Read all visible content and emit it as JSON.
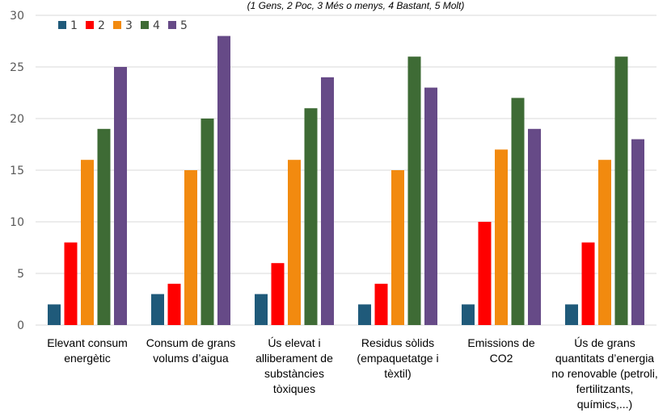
{
  "chart_data": {
    "type": "bar",
    "subtitle": "(1 Gens, 2 Poc, 3 Més o menys, 4 Bastant, 5 Molt)",
    "categories": [
      [
        "Elevant consum",
        "energètic"
      ],
      [
        "Consum de grans",
        "volums d’aigua"
      ],
      [
        "Ús elevat i",
        "alliberament de",
        "substàncies",
        "tòxiques"
      ],
      [
        "Residus sòlids",
        "(empaquetatge i",
        "tèxtil)"
      ],
      [
        "Emissions de",
        "CO2"
      ],
      [
        "Ús de grans",
        "quantitats d’energia",
        "no renovable (petroli,",
        "fertilitzants,",
        "químics,...)"
      ]
    ],
    "series": [
      {
        "name": "1",
        "color": "#1f5a7a",
        "values": [
          2,
          3,
          3,
          2,
          2,
          2
        ]
      },
      {
        "name": "2",
        "color": "#ff0000",
        "values": [
          8,
          4,
          6,
          4,
          10,
          8
        ]
      },
      {
        "name": "3",
        "color": "#f28a0f",
        "values": [
          16,
          15,
          16,
          15,
          17,
          16
        ]
      },
      {
        "name": "4",
        "color": "#3e6b35",
        "values": [
          19,
          20,
          21,
          26,
          22,
          26
        ]
      },
      {
        "name": "5",
        "color": "#664a87",
        "values": [
          25,
          28,
          24,
          23,
          19,
          18
        ]
      }
    ],
    "yticks": [
      0,
      5,
      10,
      15,
      20,
      25,
      30
    ],
    "ylim": [
      0,
      30
    ],
    "grid": true,
    "legend": "top-left"
  }
}
